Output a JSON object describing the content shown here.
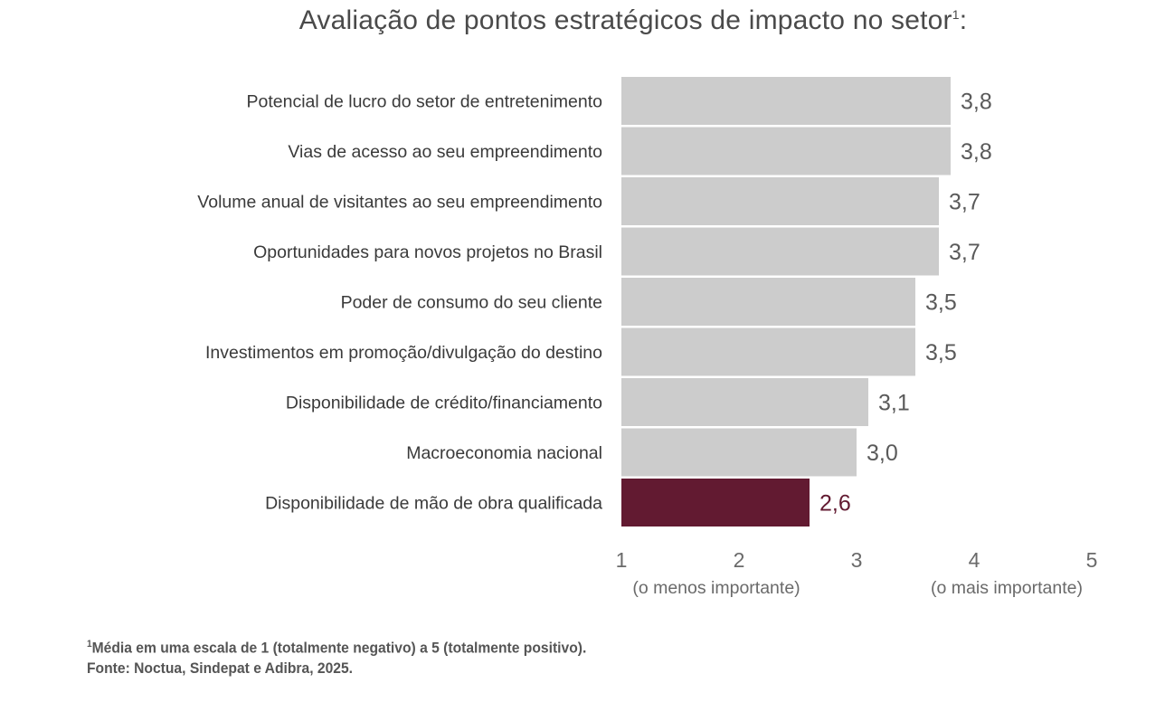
{
  "title": {
    "text": "Avaliação de pontos estratégicos de impacto no setor",
    "superscript": "1",
    "suffix": ":"
  },
  "chart_data": {
    "type": "bar",
    "orientation": "horizontal",
    "title": "Avaliação de pontos estratégicos de impacto no setor¹:",
    "categories": [
      "Potencial de lucro do setor de entretenimento",
      "Vias de acesso ao seu empreendimento",
      "Volume anual de visitantes ao seu empreendimento",
      "Oportunidades para novos projetos no Brasil",
      "Poder de consumo do seu cliente",
      "Investimentos em promoção/divulgação do destino",
      "Disponibilidade de crédito/financiamento",
      "Macroeconomia nacional",
      "Disponibilidade de mão de obra qualificada"
    ],
    "values": [
      3.8,
      3.8,
      3.7,
      3.7,
      3.5,
      3.5,
      3.1,
      3.0,
      2.6
    ],
    "value_labels": [
      "3,8",
      "3,8",
      "3,7",
      "3,7",
      "3,5",
      "3,5",
      "3,1",
      "3,0",
      "2,6"
    ],
    "highlight_index": 8,
    "xlim": [
      1,
      5
    ],
    "xticks": [
      "1",
      "2",
      "3",
      "4",
      "5"
    ],
    "xtick_sublabels": {
      "min": "(o menos importante)",
      "max": "(o mais importante)"
    },
    "grid": false,
    "legend": "none",
    "colors": {
      "bar": "#cccccc",
      "highlight": "#621a31",
      "text": "#3a3a3a",
      "value_text": "#5a5a5a",
      "highlight_text": "#621a31"
    }
  },
  "footnote": {
    "line1_sup": "1",
    "line1": "Média em uma escala de 1 (totalmente negativo) a 5 (totalmente positivo).",
    "line2": "Fonte: Noctua, Sindepat e Adibra, 2025."
  }
}
